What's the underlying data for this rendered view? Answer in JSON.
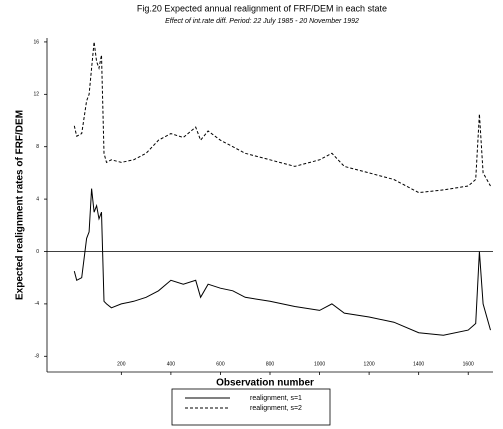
{
  "chart_data": {
    "type": "line",
    "title": "Fig.20 Expected annual realignment of FRF/DEM in each state",
    "subtitle": "Effect of int.rate diff. Period: 22 July 1985 - 20 November 1992",
    "x_label": "Observation number",
    "y_label": "Expected realignment rates of FRF/DEM",
    "x": [
      10,
      20,
      40,
      60,
      70,
      80,
      90,
      100,
      110,
      120,
      130,
      140,
      160,
      200,
      250,
      300,
      350,
      400,
      450,
      500,
      520,
      550,
      600,
      650,
      700,
      800,
      900,
      1000,
      1050,
      1100,
      1200,
      1300,
      1400,
      1500,
      1600,
      1630,
      1645,
      1660,
      1690
    ],
    "series": [
      {
        "name": "realignment, s=1",
        "color": "#000000",
        "dash": false,
        "values": [
          -1.5,
          -2.2,
          -2,
          1,
          1.5,
          4.8,
          3,
          3.5,
          2.5,
          3,
          -3.8,
          -4,
          -4.3,
          -4,
          -3.8,
          -3.5,
          -3,
          -2.2,
          -2.5,
          -2.2,
          -3.5,
          -2.5,
          -2.8,
          -3,
          -3.5,
          -3.8,
          -4.2,
          -4.5,
          -4,
          -4.7,
          -5,
          -5.4,
          -6.2,
          -6.4,
          -6,
          -5.5,
          0,
          -4,
          -6
        ]
      },
      {
        "name": "realignment, s=2",
        "color": "#000000",
        "dash": true,
        "values": [
          9.6,
          8.8,
          9,
          11.5,
          12,
          14,
          16,
          14.5,
          14,
          15,
          7.5,
          6.8,
          7,
          6.8,
          7,
          7.5,
          8.5,
          9,
          8.7,
          9.5,
          8.5,
          9.2,
          8.5,
          8,
          7.5,
          7,
          6.5,
          7,
          7.5,
          6.5,
          6,
          5.5,
          4.5,
          4.7,
          5,
          5.5,
          10.5,
          6,
          5
        ]
      }
    ],
    "xlim": [
      -100,
      1700
    ],
    "xticks": [
      200,
      400,
      600,
      800,
      1000,
      1200,
      1400,
      1600
    ],
    "ylim": [
      -9.2,
      16.3
    ],
    "yticks": [
      -8,
      -4,
      0,
      4,
      8,
      12,
      16
    ]
  }
}
